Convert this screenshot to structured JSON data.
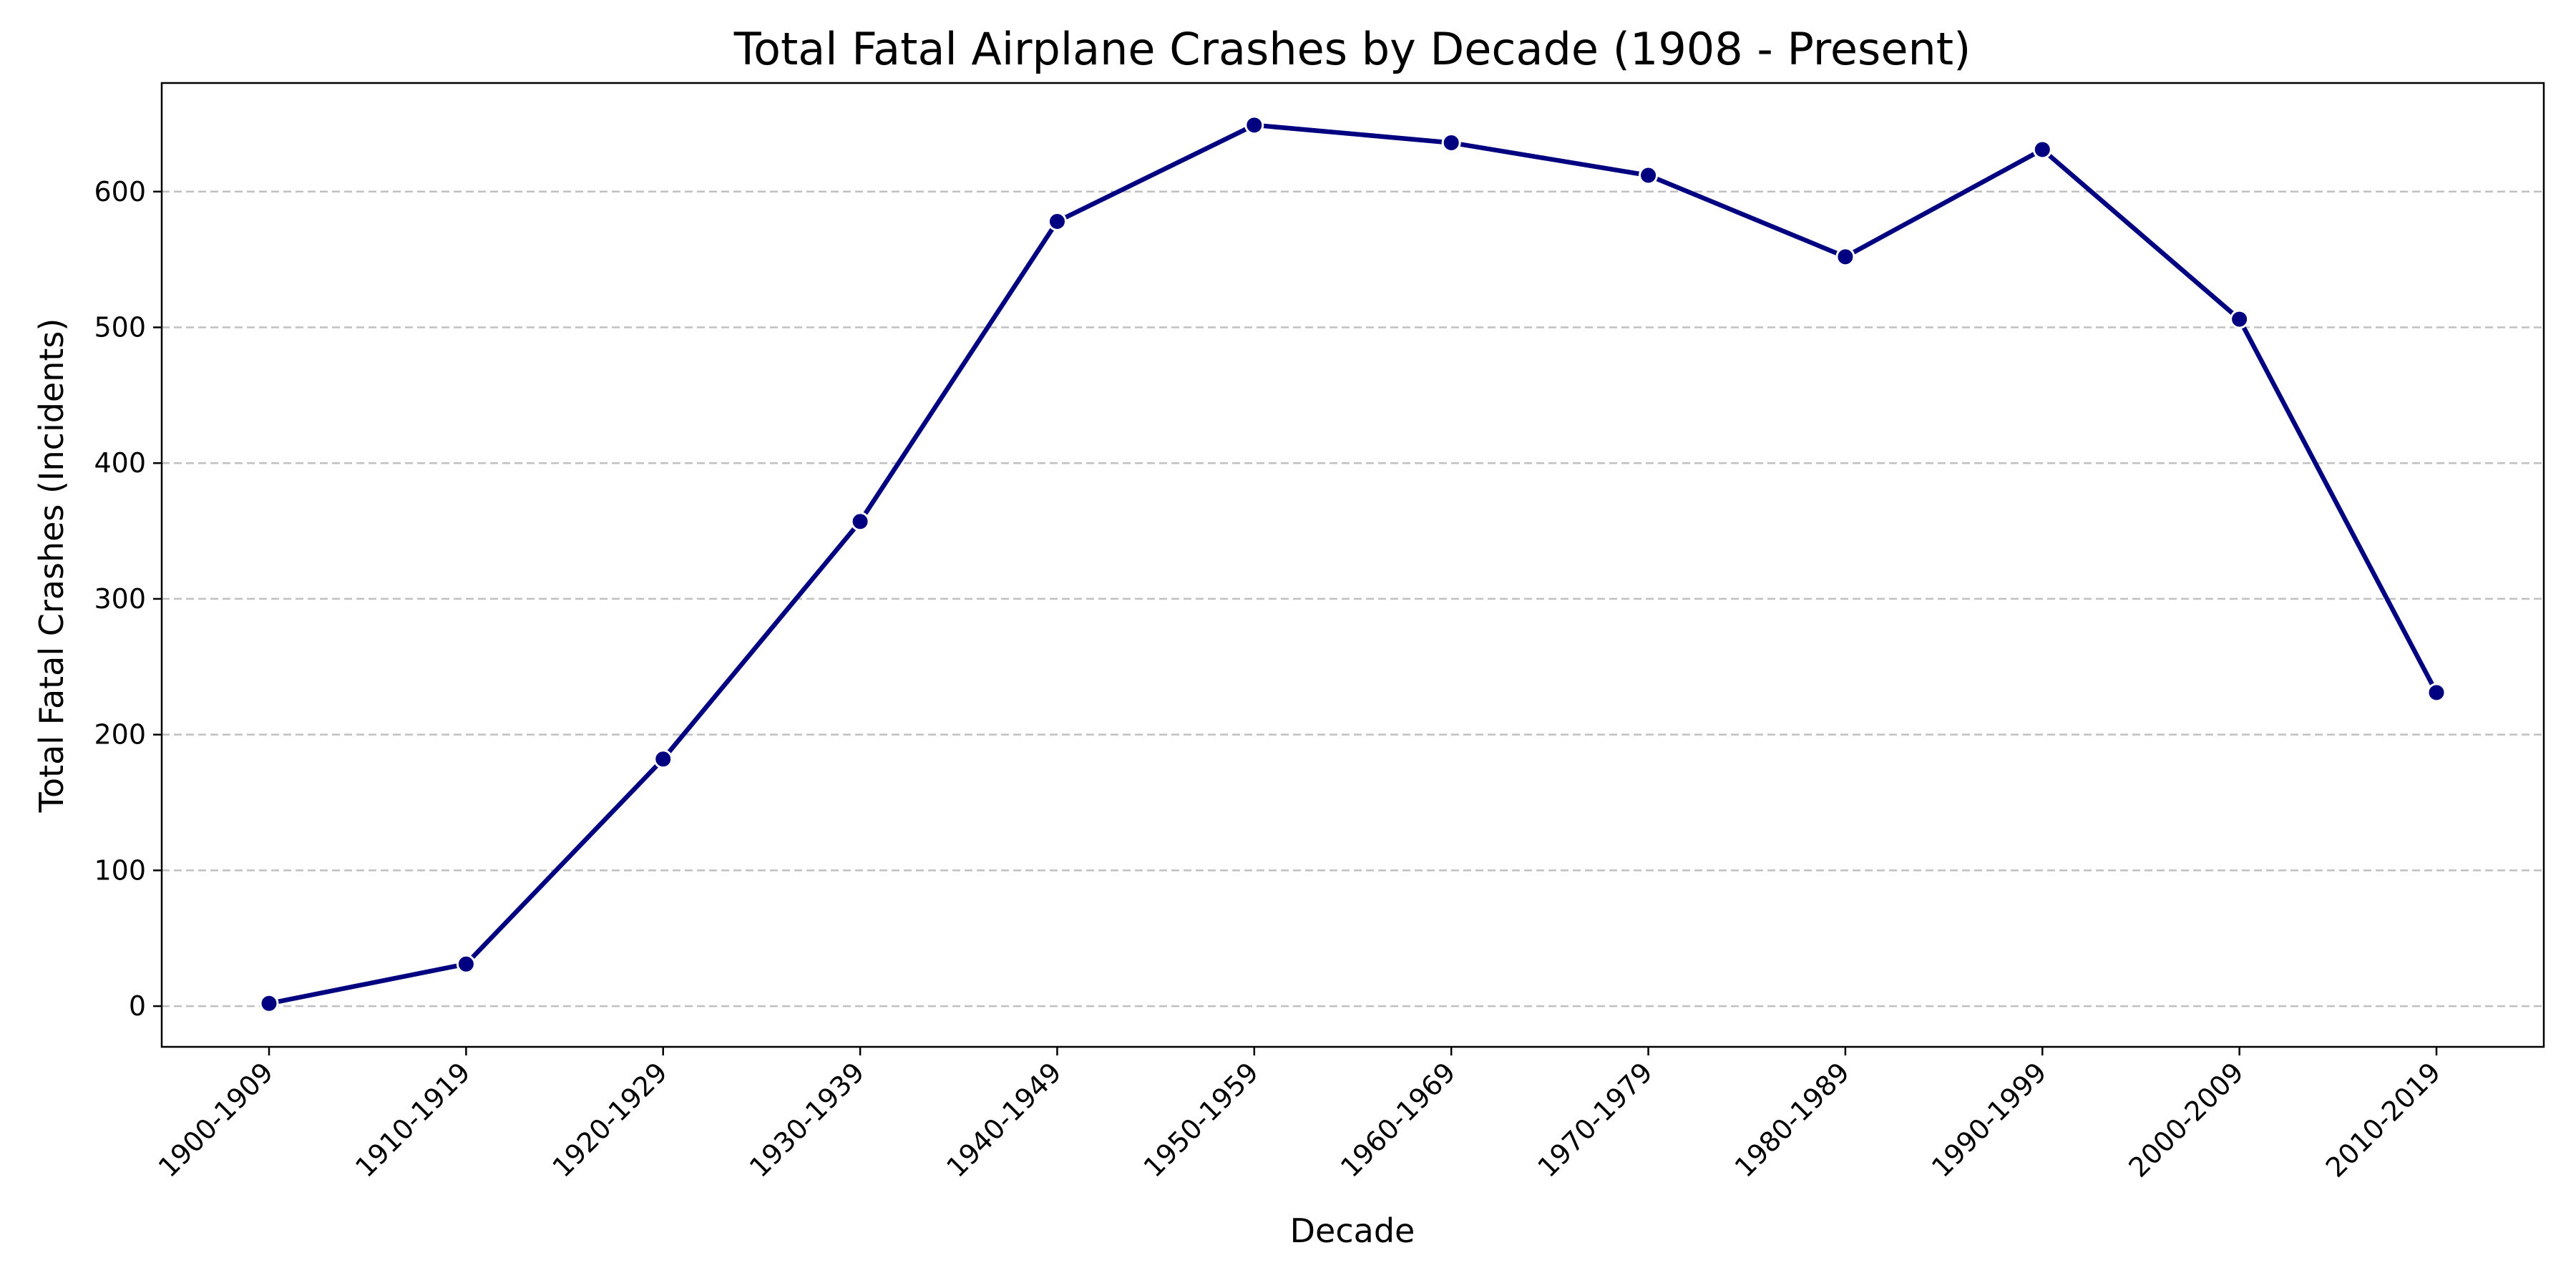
{
  "chart_data": {
    "type": "line",
    "title": "Total Fatal Airplane Crashes by Decade (1908 - Present)",
    "xlabel": "Decade",
    "ylabel": "Total Fatal Crashes (Incidents)",
    "categories": [
      "1900-1909",
      "1910-1919",
      "1920-1929",
      "1930-1939",
      "1940-1949",
      "1950-1959",
      "1960-1969",
      "1970-1979",
      "1980-1989",
      "1990-1999",
      "2000-2009",
      "2010-2019"
    ],
    "series": [
      {
        "values": [
          2,
          31,
          182,
          357,
          578,
          649,
          636,
          612,
          552,
          631,
          506,
          231
        ]
      }
    ],
    "yticks": [
      0,
      100,
      200,
      300,
      400,
      500,
      600
    ],
    "ylim": [
      -30,
      680
    ],
    "grid": "horizontal dashed",
    "legend": "none",
    "colors": {
      "line": "#000080",
      "marker": "#000080",
      "marker_edge": "#ffffff",
      "grid": "#c0c0c0"
    }
  }
}
